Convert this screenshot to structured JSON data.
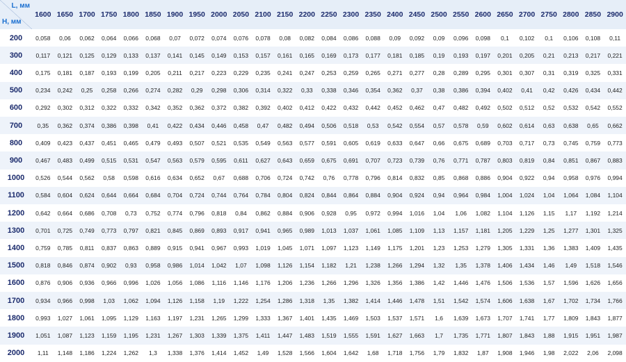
{
  "table": {
    "corner": {
      "l": "L, мм",
      "h": "H, мм"
    },
    "columns": [
      "1600",
      "1650",
      "1700",
      "1750",
      "1800",
      "1850",
      "1900",
      "1950",
      "2000",
      "2050",
      "2100",
      "2150",
      "2200",
      "2250",
      "2300",
      "2350",
      "2400",
      "2450",
      "2500",
      "2550",
      "2600",
      "2650",
      "2700",
      "2750",
      "2800",
      "2850",
      "2900"
    ],
    "rows": [
      {
        "h": "200",
        "values": [
          "0,058",
          "0,06",
          "0,062",
          "0,064",
          "0,066",
          "0,068",
          "0,07",
          "0,072",
          "0,074",
          "0,076",
          "0,078",
          "0,08",
          "0,082",
          "0,084",
          "0,086",
          "0,088",
          "0,09",
          "0,092",
          "0,09",
          "0,096",
          "0,098",
          "0,1",
          "0,102",
          "0,1",
          "0,106",
          "0,108",
          "0,11"
        ]
      },
      {
        "h": "300",
        "values": [
          "0,117",
          "0,121",
          "0,125",
          "0,129",
          "0,133",
          "0,137",
          "0,141",
          "0,145",
          "0,149",
          "0,153",
          "0,157",
          "0,161",
          "0,165",
          "0,169",
          "0,173",
          "0,177",
          "0,181",
          "0,185",
          "0,19",
          "0,193",
          "0,197",
          "0,201",
          "0,205",
          "0,21",
          "0,213",
          "0,217",
          "0,221"
        ]
      },
      {
        "h": "400",
        "values": [
          "0,175",
          "0,181",
          "0,187",
          "0,193",
          "0,199",
          "0,205",
          "0,211",
          "0,217",
          "0,223",
          "0,229",
          "0,235",
          "0,241",
          "0,247",
          "0,253",
          "0,259",
          "0,265",
          "0,271",
          "0,277",
          "0,28",
          "0,289",
          "0,295",
          "0,301",
          "0,307",
          "0,31",
          "0,319",
          "0,325",
          "0,331"
        ]
      },
      {
        "h": "500",
        "values": [
          "0,234",
          "0,242",
          "0,25",
          "0,258",
          "0,266",
          "0,274",
          "0,282",
          "0,29",
          "0,298",
          "0,306",
          "0,314",
          "0,322",
          "0,33",
          "0,338",
          "0,346",
          "0,354",
          "0,362",
          "0,37",
          "0,38",
          "0,386",
          "0,394",
          "0,402",
          "0,41",
          "0,42",
          "0,426",
          "0,434",
          "0,442"
        ]
      },
      {
        "h": "600",
        "values": [
          "0,292",
          "0,302",
          "0,312",
          "0,322",
          "0,332",
          "0,342",
          "0,352",
          "0,362",
          "0,372",
          "0,382",
          "0,392",
          "0,402",
          "0,412",
          "0,422",
          "0,432",
          "0,442",
          "0,452",
          "0,462",
          "0,47",
          "0,482",
          "0,492",
          "0,502",
          "0,512",
          "0,52",
          "0,532",
          "0,542",
          "0,552"
        ]
      },
      {
        "h": "700",
        "values": [
          "0,35",
          "0,362",
          "0,374",
          "0,386",
          "0,398",
          "0,41",
          "0,422",
          "0,434",
          "0,446",
          "0,458",
          "0,47",
          "0,482",
          "0,494",
          "0,506",
          "0,518",
          "0,53",
          "0,542",
          "0,554",
          "0,57",
          "0,578",
          "0,59",
          "0,602",
          "0,614",
          "0,63",
          "0,638",
          "0,65",
          "0,662"
        ]
      },
      {
        "h": "800",
        "values": [
          "0,409",
          "0,423",
          "0,437",
          "0,451",
          "0,465",
          "0,479",
          "0,493",
          "0,507",
          "0,521",
          "0,535",
          "0,549",
          "0,563",
          "0,577",
          "0,591",
          "0,605",
          "0,619",
          "0,633",
          "0,647",
          "0,66",
          "0,675",
          "0,689",
          "0,703",
          "0,717",
          "0,73",
          "0,745",
          "0,759",
          "0,773"
        ]
      },
      {
        "h": "900",
        "values": [
          "0,467",
          "0,483",
          "0,499",
          "0,515",
          "0,531",
          "0,547",
          "0,563",
          "0,579",
          "0,595",
          "0,611",
          "0,627",
          "0,643",
          "0,659",
          "0,675",
          "0,691",
          "0,707",
          "0,723",
          "0,739",
          "0,76",
          "0,771",
          "0,787",
          "0,803",
          "0,819",
          "0,84",
          "0,851",
          "0,867",
          "0,883"
        ]
      },
      {
        "h": "1000",
        "values": [
          "0,526",
          "0,544",
          "0,562",
          "0,58",
          "0,598",
          "0,616",
          "0,634",
          "0,652",
          "0,67",
          "0,688",
          "0,706",
          "0,724",
          "0,742",
          "0,76",
          "0,778",
          "0,796",
          "0,814",
          "0,832",
          "0,85",
          "0,868",
          "0,886",
          "0,904",
          "0,922",
          "0,94",
          "0,958",
          "0,976",
          "0,994"
        ]
      },
      {
        "h": "1100",
        "values": [
          "0,584",
          "0,604",
          "0,624",
          "0,644",
          "0,664",
          "0,684",
          "0,704",
          "0,724",
          "0,744",
          "0,764",
          "0,784",
          "0,804",
          "0,824",
          "0,844",
          "0,864",
          "0,884",
          "0,904",
          "0,924",
          "0,94",
          "0,964",
          "0,984",
          "1,004",
          "1,024",
          "1,04",
          "1,064",
          "1,084",
          "1,104"
        ]
      },
      {
        "h": "1200",
        "values": [
          "0,642",
          "0,664",
          "0,686",
          "0,708",
          "0,73",
          "0,752",
          "0,774",
          "0,796",
          "0,818",
          "0,84",
          "0,862",
          "0,884",
          "0,906",
          "0,928",
          "0,95",
          "0,972",
          "0,994",
          "1,016",
          "1,04",
          "1,06",
          "1,082",
          "1,104",
          "1,126",
          "1,15",
          "1,17",
          "1,192",
          "1,214"
        ]
      },
      {
        "h": "1300",
        "values": [
          "0,701",
          "0,725",
          "0,749",
          "0,773",
          "0,797",
          "0,821",
          "0,845",
          "0,869",
          "0,893",
          "0,917",
          "0,941",
          "0,965",
          "0,989",
          "1,013",
          "1,037",
          "1,061",
          "1,085",
          "1,109",
          "1,13",
          "1,157",
          "1,181",
          "1,205",
          "1,229",
          "1,25",
          "1,277",
          "1,301",
          "1,325"
        ]
      },
      {
        "h": "1400",
        "values": [
          "0,759",
          "0,785",
          "0,811",
          "0,837",
          "0,863",
          "0,889",
          "0,915",
          "0,941",
          "0,967",
          "0,993",
          "1,019",
          "1,045",
          "1,071",
          "1,097",
          "1,123",
          "1,149",
          "1,175",
          "1,201",
          "1,23",
          "1,253",
          "1,279",
          "1,305",
          "1,331",
          "1,36",
          "1,383",
          "1,409",
          "1,435"
        ]
      },
      {
        "h": "1500",
        "values": [
          "0,818",
          "0,846",
          "0,874",
          "0,902",
          "0,93",
          "0,958",
          "0,986",
          "1,014",
          "1,042",
          "1,07",
          "1,098",
          "1,126",
          "1,154",
          "1,182",
          "1,21",
          "1,238",
          "1,266",
          "1,294",
          "1,32",
          "1,35",
          "1,378",
          "1,406",
          "1,434",
          "1,46",
          "1,49",
          "1,518",
          "1,546"
        ]
      },
      {
        "h": "1600",
        "values": [
          "0,876",
          "0,906",
          "0,936",
          "0,966",
          "0,996",
          "1,026",
          "1,056",
          "1,086",
          "1,116",
          "1,146",
          "1,176",
          "1,206",
          "1,236",
          "1,266",
          "1,296",
          "1,326",
          "1,356",
          "1,386",
          "1,42",
          "1,446",
          "1,476",
          "1,506",
          "1,536",
          "1,57",
          "1,596",
          "1,626",
          "1,656"
        ]
      },
      {
        "h": "1700",
        "values": [
          "0,934",
          "0,966",
          "0,998",
          "1,03",
          "1,062",
          "1,094",
          "1,126",
          "1,158",
          "1,19",
          "1,222",
          "1,254",
          "1,286",
          "1,318",
          "1,35",
          "1,382",
          "1,414",
          "1,446",
          "1,478",
          "1,51",
          "1,542",
          "1,574",
          "1,606",
          "1,638",
          "1,67",
          "1,702",
          "1,734",
          "1,766"
        ]
      },
      {
        "h": "1800",
        "values": [
          "0,993",
          "1,027",
          "1,061",
          "1,095",
          "1,129",
          "1,163",
          "1,197",
          "1,231",
          "1,265",
          "1,299",
          "1,333",
          "1,367",
          "1,401",
          "1,435",
          "1,469",
          "1,503",
          "1,537",
          "1,571",
          "1,6",
          "1,639",
          "1,673",
          "1,707",
          "1,741",
          "1,77",
          "1,809",
          "1,843",
          "1,877"
        ]
      },
      {
        "h": "1900",
        "values": [
          "1,051",
          "1,087",
          "1,123",
          "1,159",
          "1,195",
          "1,231",
          "1,267",
          "1,303",
          "1,339",
          "1,375",
          "1,411",
          "1,447",
          "1,483",
          "1,519",
          "1,555",
          "1,591",
          "1,627",
          "1,663",
          "1,7",
          "1,735",
          "1,771",
          "1,807",
          "1,843",
          "1,88",
          "1,915",
          "1,951",
          "1,987"
        ]
      },
      {
        "h": "2000",
        "values": [
          "1,11",
          "1,148",
          "1,186",
          "1,224",
          "1,262",
          "1,3",
          "1,338",
          "1,376",
          "1,414",
          "1,452",
          "1,49",
          "1,528",
          "1,566",
          "1,604",
          "1,642",
          "1,68",
          "1,718",
          "1,756",
          "1,79",
          "1,832",
          "1,87",
          "1,908",
          "1,946",
          "1,98",
          "2,022",
          "2,06",
          "2,098"
        ]
      }
    ]
  }
}
